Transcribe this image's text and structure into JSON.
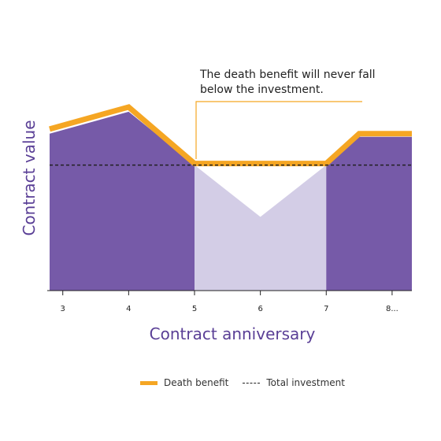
{
  "chart_data": {
    "type": "area",
    "title": "",
    "xlabel": "Contract anniversary",
    "ylabel": "Contract value",
    "x_ticks": [
      "3",
      "4",
      "5",
      "6",
      "7",
      "8..."
    ],
    "x": [
      2.8,
      4,
      5,
      6,
      7,
      7.5,
      8.3
    ],
    "series": [
      {
        "name": "Contract value",
        "role": "area",
        "values": [
          100,
          114,
          80,
          47,
          80,
          98,
          98
        ]
      },
      {
        "name": "Death benefit",
        "role": "line",
        "values": [
          103,
          117,
          81,
          81,
          81,
          100,
          100
        ]
      },
      {
        "name": "Total investment",
        "role": "dashed-line",
        "values": [
          80,
          80,
          80,
          80,
          80,
          80,
          80
        ]
      }
    ],
    "highlight_range": [
      5,
      7
    ],
    "ylim": [
      0,
      125
    ],
    "xlim": [
      2.8,
      8.3
    ],
    "annotation": "The death benefit will never fall below the investment.",
    "legend": [
      "Death benefit",
      "Total investment"
    ],
    "legend_position": "bottom",
    "colors": {
      "area": "#765aa8",
      "area_light": "#d3cde6",
      "death_benefit": "#f5a623",
      "investment": "#222222",
      "label": "#5a3f96"
    }
  }
}
